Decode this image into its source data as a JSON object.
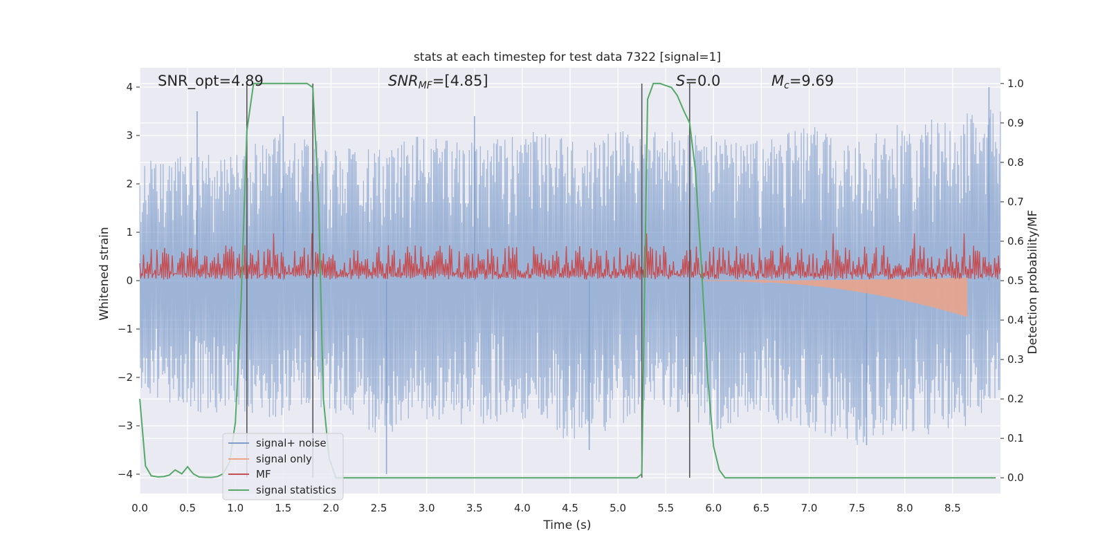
{
  "chart_data": {
    "type": "line",
    "title": "stats at each timestep for test data 7322 [signal=1]",
    "xlabel": "Time (s)",
    "ylabel": "Whitened strain",
    "y2label": "Detection probability/MF",
    "xlim": [
      0,
      9.0
    ],
    "ylim": [
      -4.4,
      4.4
    ],
    "y2lim": [
      -0.04,
      1.04
    ],
    "x_ticks": [
      "0.0",
      "0.5",
      "1.0",
      "1.5",
      "2.0",
      "2.5",
      "3.0",
      "3.5",
      "4.0",
      "4.5",
      "5.0",
      "5.5",
      "6.0",
      "6.5",
      "7.0",
      "7.5",
      "8.0",
      "8.5"
    ],
    "y_ticks": [
      "4",
      "3",
      "2",
      "1",
      "0",
      "−1",
      "−2",
      "−3",
      "−4"
    ],
    "y2_ticks": [
      "1.0",
      "0.9",
      "0.8",
      "0.7",
      "0.6",
      "0.5",
      "0.4",
      "0.3",
      "0.2",
      "0.1",
      "0.0"
    ],
    "annotations": {
      "snr_opt": "SNR_opt=4.89",
      "snr_mf_italic": "SNR",
      "snr_mf_sub": "MF",
      "snr_mf_rest": "=[4.85]",
      "s_italic": "S",
      "s_rest": "=0.0",
      "mc_italic": "M",
      "mc_sub": "c",
      "mc_rest": "=9.69"
    },
    "legend": {
      "position": "lower-left",
      "entries": [
        {
          "label": "signal+ noise",
          "color": "#7d9ccc"
        },
        {
          "label": "signal only",
          "color": "#e8a48c"
        },
        {
          "label": "MF",
          "color": "#c44e52"
        },
        {
          "label": "signal statistics",
          "color": "#55a868"
        }
      ]
    },
    "vertical_lines_x": [
      1.12,
      1.81,
      5.25,
      5.75
    ],
    "signal_statistics": {
      "x": [
        0.0,
        0.06,
        0.12,
        0.19,
        0.25,
        0.31,
        0.37,
        0.44,
        0.5,
        0.56,
        0.62,
        0.69,
        0.75,
        0.81,
        0.87,
        0.94,
        1.0,
        1.06,
        1.12,
        1.19,
        1.25,
        1.31,
        1.4,
        1.5,
        1.6,
        1.7,
        1.75,
        1.81,
        1.87,
        1.92,
        1.98,
        2.05,
        2.2,
        2.5,
        3.0,
        3.5,
        4.0,
        4.5,
        5.0,
        5.2,
        5.25,
        5.28,
        5.31,
        5.37,
        5.44,
        5.5,
        5.56,
        5.62,
        5.69,
        5.75,
        5.81,
        5.87,
        5.94,
        6.0,
        6.06,
        6.12,
        6.2,
        6.5,
        7.0,
        7.5,
        8.0,
        8.5,
        8.95
      ],
      "y": [
        0.2,
        0.03,
        0.005,
        0.002,
        0.003,
        0.007,
        0.02,
        0.01,
        0.028,
        0.01,
        0.002,
        0.001,
        0.001,
        0.003,
        0.01,
        0.04,
        0.14,
        0.45,
        0.88,
        1.0,
        1.0,
        1.0,
        1.0,
        1.0,
        1.0,
        1.0,
        1.0,
        0.99,
        0.7,
        0.2,
        0.05,
        0.0,
        0.0,
        0.0,
        0.0,
        0.0,
        0.0,
        0.0,
        0.0,
        0.0,
        0.01,
        0.5,
        0.96,
        1.0,
        1.0,
        0.995,
        0.99,
        0.97,
        0.93,
        0.9,
        0.78,
        0.55,
        0.25,
        0.08,
        0.02,
        0.0,
        0.0,
        0.0,
        0.0,
        0.0,
        0.0,
        0.0,
        0.0
      ]
    },
    "noise_envelope": {
      "x": [
        0.0,
        0.5,
        1.0,
        1.5,
        2.0,
        2.5,
        3.0,
        3.5,
        4.0,
        4.5,
        5.0,
        5.5,
        6.0,
        6.5,
        7.0,
        7.5,
        8.0,
        8.5,
        8.95
      ],
      "upper": [
        2.5,
        2.6,
        2.7,
        3.1,
        2.8,
        2.7,
        3.1,
        2.9,
        3.2,
        3.0,
        3.1,
        3.2,
        3.0,
        2.9,
        3.2,
        3.0,
        3.3,
        3.4,
        3.6
      ],
      "lower": [
        -2.5,
        -2.7,
        -2.9,
        -2.8,
        -2.7,
        -3.3,
        -2.9,
        -3.0,
        -2.9,
        -3.4,
        -3.0,
        -2.6,
        -3.1,
        -2.9,
        -3.1,
        -3.4,
        -3.1,
        -3.3,
        -2.5
      ]
    },
    "mf_band": {
      "baseline": 0.5,
      "typical_peak": 0.59,
      "max_peak": 0.62
    },
    "signal_only": {
      "x_start": 5.9,
      "x_end": 8.65,
      "min_at_end": -0.75
    },
    "spikes": [
      {
        "x": 0.6,
        "y": 3.5
      },
      {
        "x": 1.5,
        "y": 3.4
      },
      {
        "x": 2.58,
        "y": -4.0
      },
      {
        "x": 3.5,
        "y": 3.4
      },
      {
        "x": 4.7,
        "y": -3.5
      },
      {
        "x": 7.6,
        "y": -3.4
      },
      {
        "x": 8.88,
        "y": 4.0
      }
    ]
  }
}
